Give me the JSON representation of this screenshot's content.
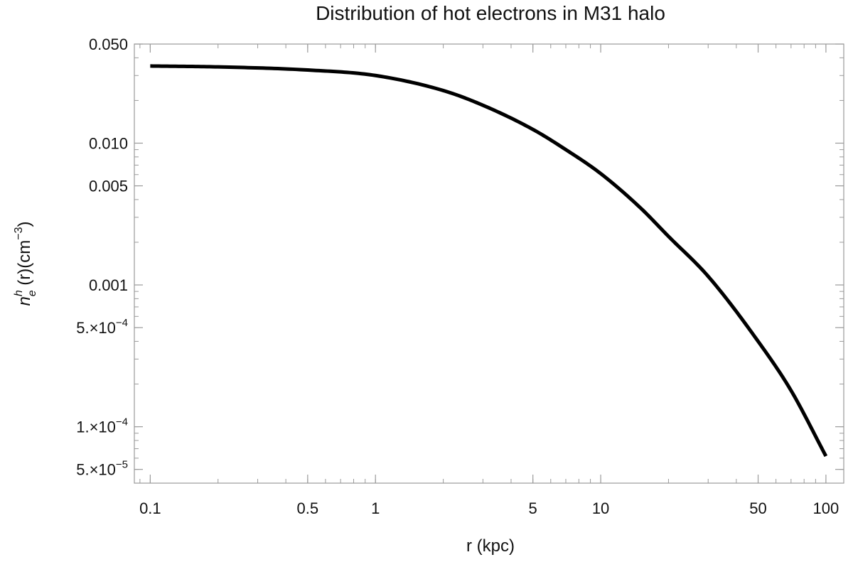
{
  "chart_data": {
    "type": "line",
    "title": "Distribution of hot electrons in M31 halo",
    "xlabel": "r (kpc)",
    "ylabel": {
      "base": "n",
      "sup": "h",
      "sub": "e",
      "rest": " (r)(cm",
      "rest_sup": "−3",
      "close": ")"
    },
    "x_scale": "log",
    "y_scale": "log",
    "xlim": [
      0.085,
      120
    ],
    "ylim": [
      4e-05,
      0.05
    ],
    "x_ticks": [
      {
        "value": 0.1,
        "label": "0.1"
      },
      {
        "value": 0.5,
        "label": "0.5"
      },
      {
        "value": 1,
        "label": "1"
      },
      {
        "value": 5,
        "label": "5"
      },
      {
        "value": 10,
        "label": "10"
      },
      {
        "value": 50,
        "label": "50"
      },
      {
        "value": 100,
        "label": "100"
      }
    ],
    "y_ticks": [
      {
        "value": 0.05,
        "label": "0.050"
      },
      {
        "value": 0.01,
        "label": "0.010"
      },
      {
        "value": 0.005,
        "label": "0.005"
      },
      {
        "value": 0.001,
        "label": "0.001"
      },
      {
        "value": 0.0005,
        "label_mant": "5.×10",
        "label_exp": "−4"
      },
      {
        "value": 0.0001,
        "label_mant": "1.×10",
        "label_exp": "−4"
      },
      {
        "value": 5e-05,
        "label_mant": "5.×10",
        "label_exp": "−5"
      }
    ],
    "grid": false,
    "series": [
      {
        "color": "#000000",
        "x": [
          0.1,
          0.2,
          0.5,
          1,
          2,
          3,
          5,
          7,
          10,
          15,
          20,
          30,
          50,
          70,
          100
        ],
        "y": [
          0.035,
          0.0345,
          0.0328,
          0.03,
          0.0235,
          0.0185,
          0.0125,
          0.009,
          0.0061,
          0.0035,
          0.0022,
          0.00115,
          0.0004,
          0.00018,
          6.2e-05
        ]
      }
    ]
  }
}
